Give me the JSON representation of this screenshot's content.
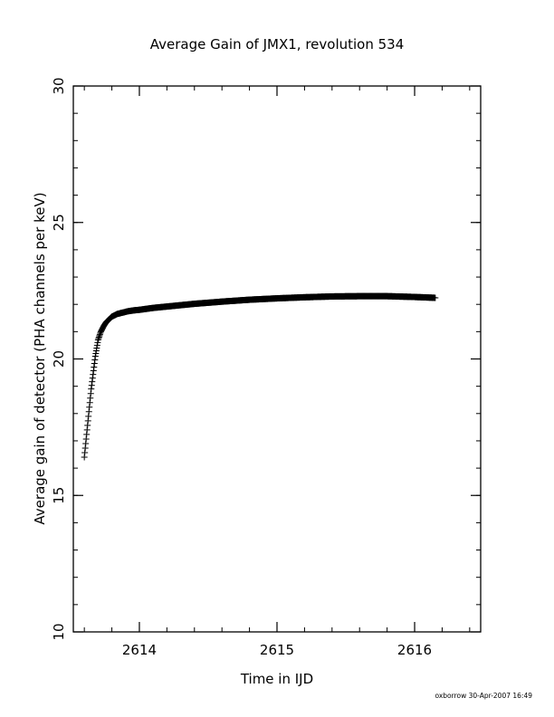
{
  "chart_data": {
    "type": "scatter",
    "title": "Average Gain of JMX1, revolution 534",
    "xlabel": "Time in IJD",
    "ylabel": "Average gain of detector (PHA channels per keV)",
    "xlim": [
      2613.52,
      2616.48
    ],
    "ylim": [
      10,
      30
    ],
    "x_ticks": [
      2614,
      2615,
      2616
    ],
    "y_ticks": [
      10,
      15,
      20,
      25,
      30
    ],
    "x_tick_labels": [
      "2614",
      "2615",
      "2616"
    ],
    "y_tick_labels": [
      "10",
      "15",
      "20",
      "25",
      "30"
    ],
    "grid": false,
    "marker": "plus",
    "series": [
      {
        "x": [
          2613.6,
          2613.61,
          2613.62,
          2613.63,
          2613.64,
          2613.65,
          2613.66,
          2613.67,
          2613.68,
          2613.69,
          2613.7,
          2613.72,
          2613.74,
          2613.76,
          2613.78,
          2613.8,
          2613.84,
          2613.88,
          2613.92,
          2613.96,
          2614.0,
          2614.1,
          2614.2,
          2614.4,
          2614.6,
          2614.8,
          2615.0,
          2615.2,
          2615.4,
          2615.6,
          2615.8,
          2616.0,
          2616.15
        ],
        "y": [
          16.4,
          16.9,
          17.4,
          17.9,
          18.4,
          18.9,
          19.3,
          19.7,
          20.1,
          20.4,
          20.7,
          21.0,
          21.2,
          21.35,
          21.45,
          21.55,
          21.65,
          21.7,
          21.75,
          21.78,
          21.8,
          21.87,
          21.92,
          22.02,
          22.1,
          22.17,
          22.22,
          22.26,
          22.29,
          22.3,
          22.3,
          22.27,
          22.24
        ]
      }
    ]
  },
  "footer": {
    "credit": "oxborrow 30-Apr-2007 16:49"
  }
}
